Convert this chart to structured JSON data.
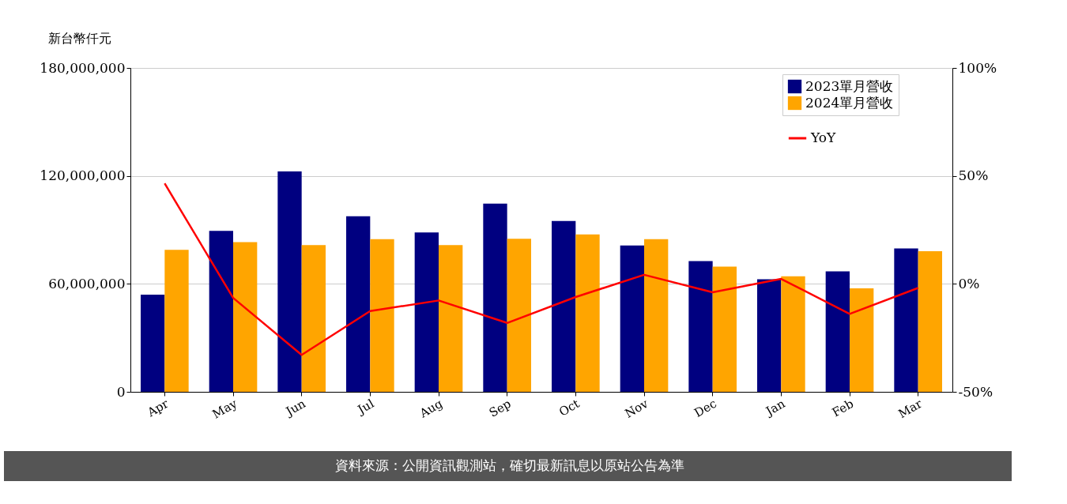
{
  "chart_data": {
    "type": "bar",
    "ylabel": "新台幣仟元",
    "categories": [
      "Apr",
      "May",
      "Jun",
      "Jul",
      "Aug",
      "Sep",
      "Oct",
      "Nov",
      "Dec",
      "Jan",
      "Feb",
      "Mar"
    ],
    "series": [
      {
        "name": "2023單月營收",
        "color": "#000080",
        "values": [
          54000000,
          89400000,
          122500000,
          97600000,
          88600000,
          104600000,
          94900000,
          81300000,
          72700000,
          62600000,
          66900000,
          79700000
        ]
      },
      {
        "name": "2024單月營收",
        "color": "#ffa500",
        "values": [
          78900000,
          83200000,
          81600000,
          84800000,
          81600000,
          85100000,
          87500000,
          84800000,
          69600000,
          64200000,
          57500000,
          78100000
        ]
      },
      {
        "name": "YoY",
        "type": "line",
        "axis": "y2",
        "color": "#ff0000",
        "values": [
          46.5,
          -6.5,
          -32.9,
          -12.6,
          -7.7,
          -18.1,
          -6.1,
          4.2,
          -3.9,
          2.3,
          -13.9,
          -1.9
        ]
      }
    ],
    "ylim": [
      0,
      180000000
    ],
    "yticks": [
      {
        "value": 0,
        "label": "0"
      },
      {
        "value": 60000000,
        "label": "60,000,000"
      },
      {
        "value": 120000000,
        "label": "120,000,000"
      },
      {
        "value": 180000000,
        "label": "180,000,000"
      }
    ],
    "y2lim": [
      -50,
      100
    ],
    "y2ticks": [
      {
        "value": -50,
        "label": "-50%"
      },
      {
        "value": 0,
        "label": "0%"
      },
      {
        "value": 50,
        "label": "50%"
      },
      {
        "value": 100,
        "label": "100%"
      }
    ],
    "grid": "y",
    "legend": "top right",
    "marker": "none",
    "line_style": "solid",
    "annotations": [
      "資料來源：公開資訊觀測站，確切最新訊息以原站公告為準"
    ]
  }
}
